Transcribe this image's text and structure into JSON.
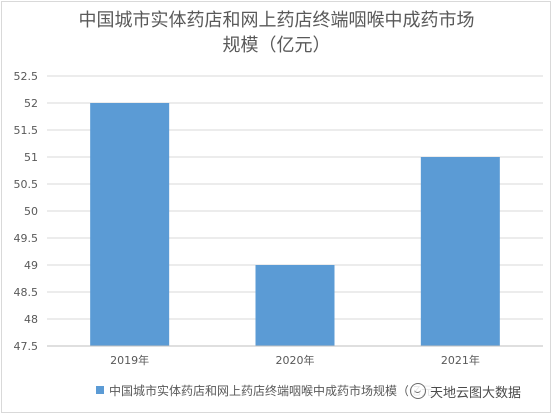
{
  "chart_data": {
    "type": "bar",
    "title_lines": [
      "中国城市实体药店和网上药店终端咽喉中成药市场",
      "规模（亿元）"
    ],
    "categories": [
      "2019年",
      "2020年",
      "2021年"
    ],
    "series": [
      {
        "name": "中国城市实体药店和网上药店终端咽喉中成药市场规模（亿元）",
        "values": [
          52,
          49,
          51
        ]
      }
    ],
    "ylim": [
      47.5,
      52.5
    ],
    "yticks": [
      "47.5",
      "48",
      "48.5",
      "49",
      "49.5",
      "50",
      "50.5",
      "51",
      "51.5",
      "52",
      "52.5"
    ],
    "grid": true,
    "legend_position": "bottom",
    "bar_color": "#5b9bd5"
  },
  "watermark": {
    "text": "天地云图大数据",
    "icon": "wechat-icon"
  }
}
